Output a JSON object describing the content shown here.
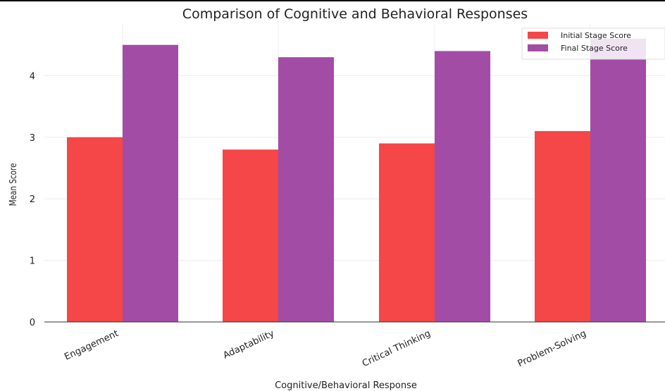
{
  "chart_data": {
    "type": "bar",
    "title": "Comparison of Cognitive and Behavioral Responses",
    "xlabel": "Cognitive/Behavioral Response",
    "ylabel": "Mean Score",
    "categories": [
      "Engagement",
      "Adaptability",
      "Critical Thinking",
      "Problem-Solving"
    ],
    "series": [
      {
        "name": "Initial Stage Score",
        "values": [
          3.0,
          2.8,
          2.9,
          3.1
        ],
        "color": "#f54648"
      },
      {
        "name": "Final Stage Score",
        "values": [
          4.5,
          4.3,
          4.4,
          4.6
        ],
        "color": "#a24ca6"
      }
    ],
    "yticks": [
      0,
      1,
      2,
      3,
      4
    ],
    "ylim": [
      0,
      4.84
    ],
    "grid": true,
    "legend_position": "top-right"
  }
}
